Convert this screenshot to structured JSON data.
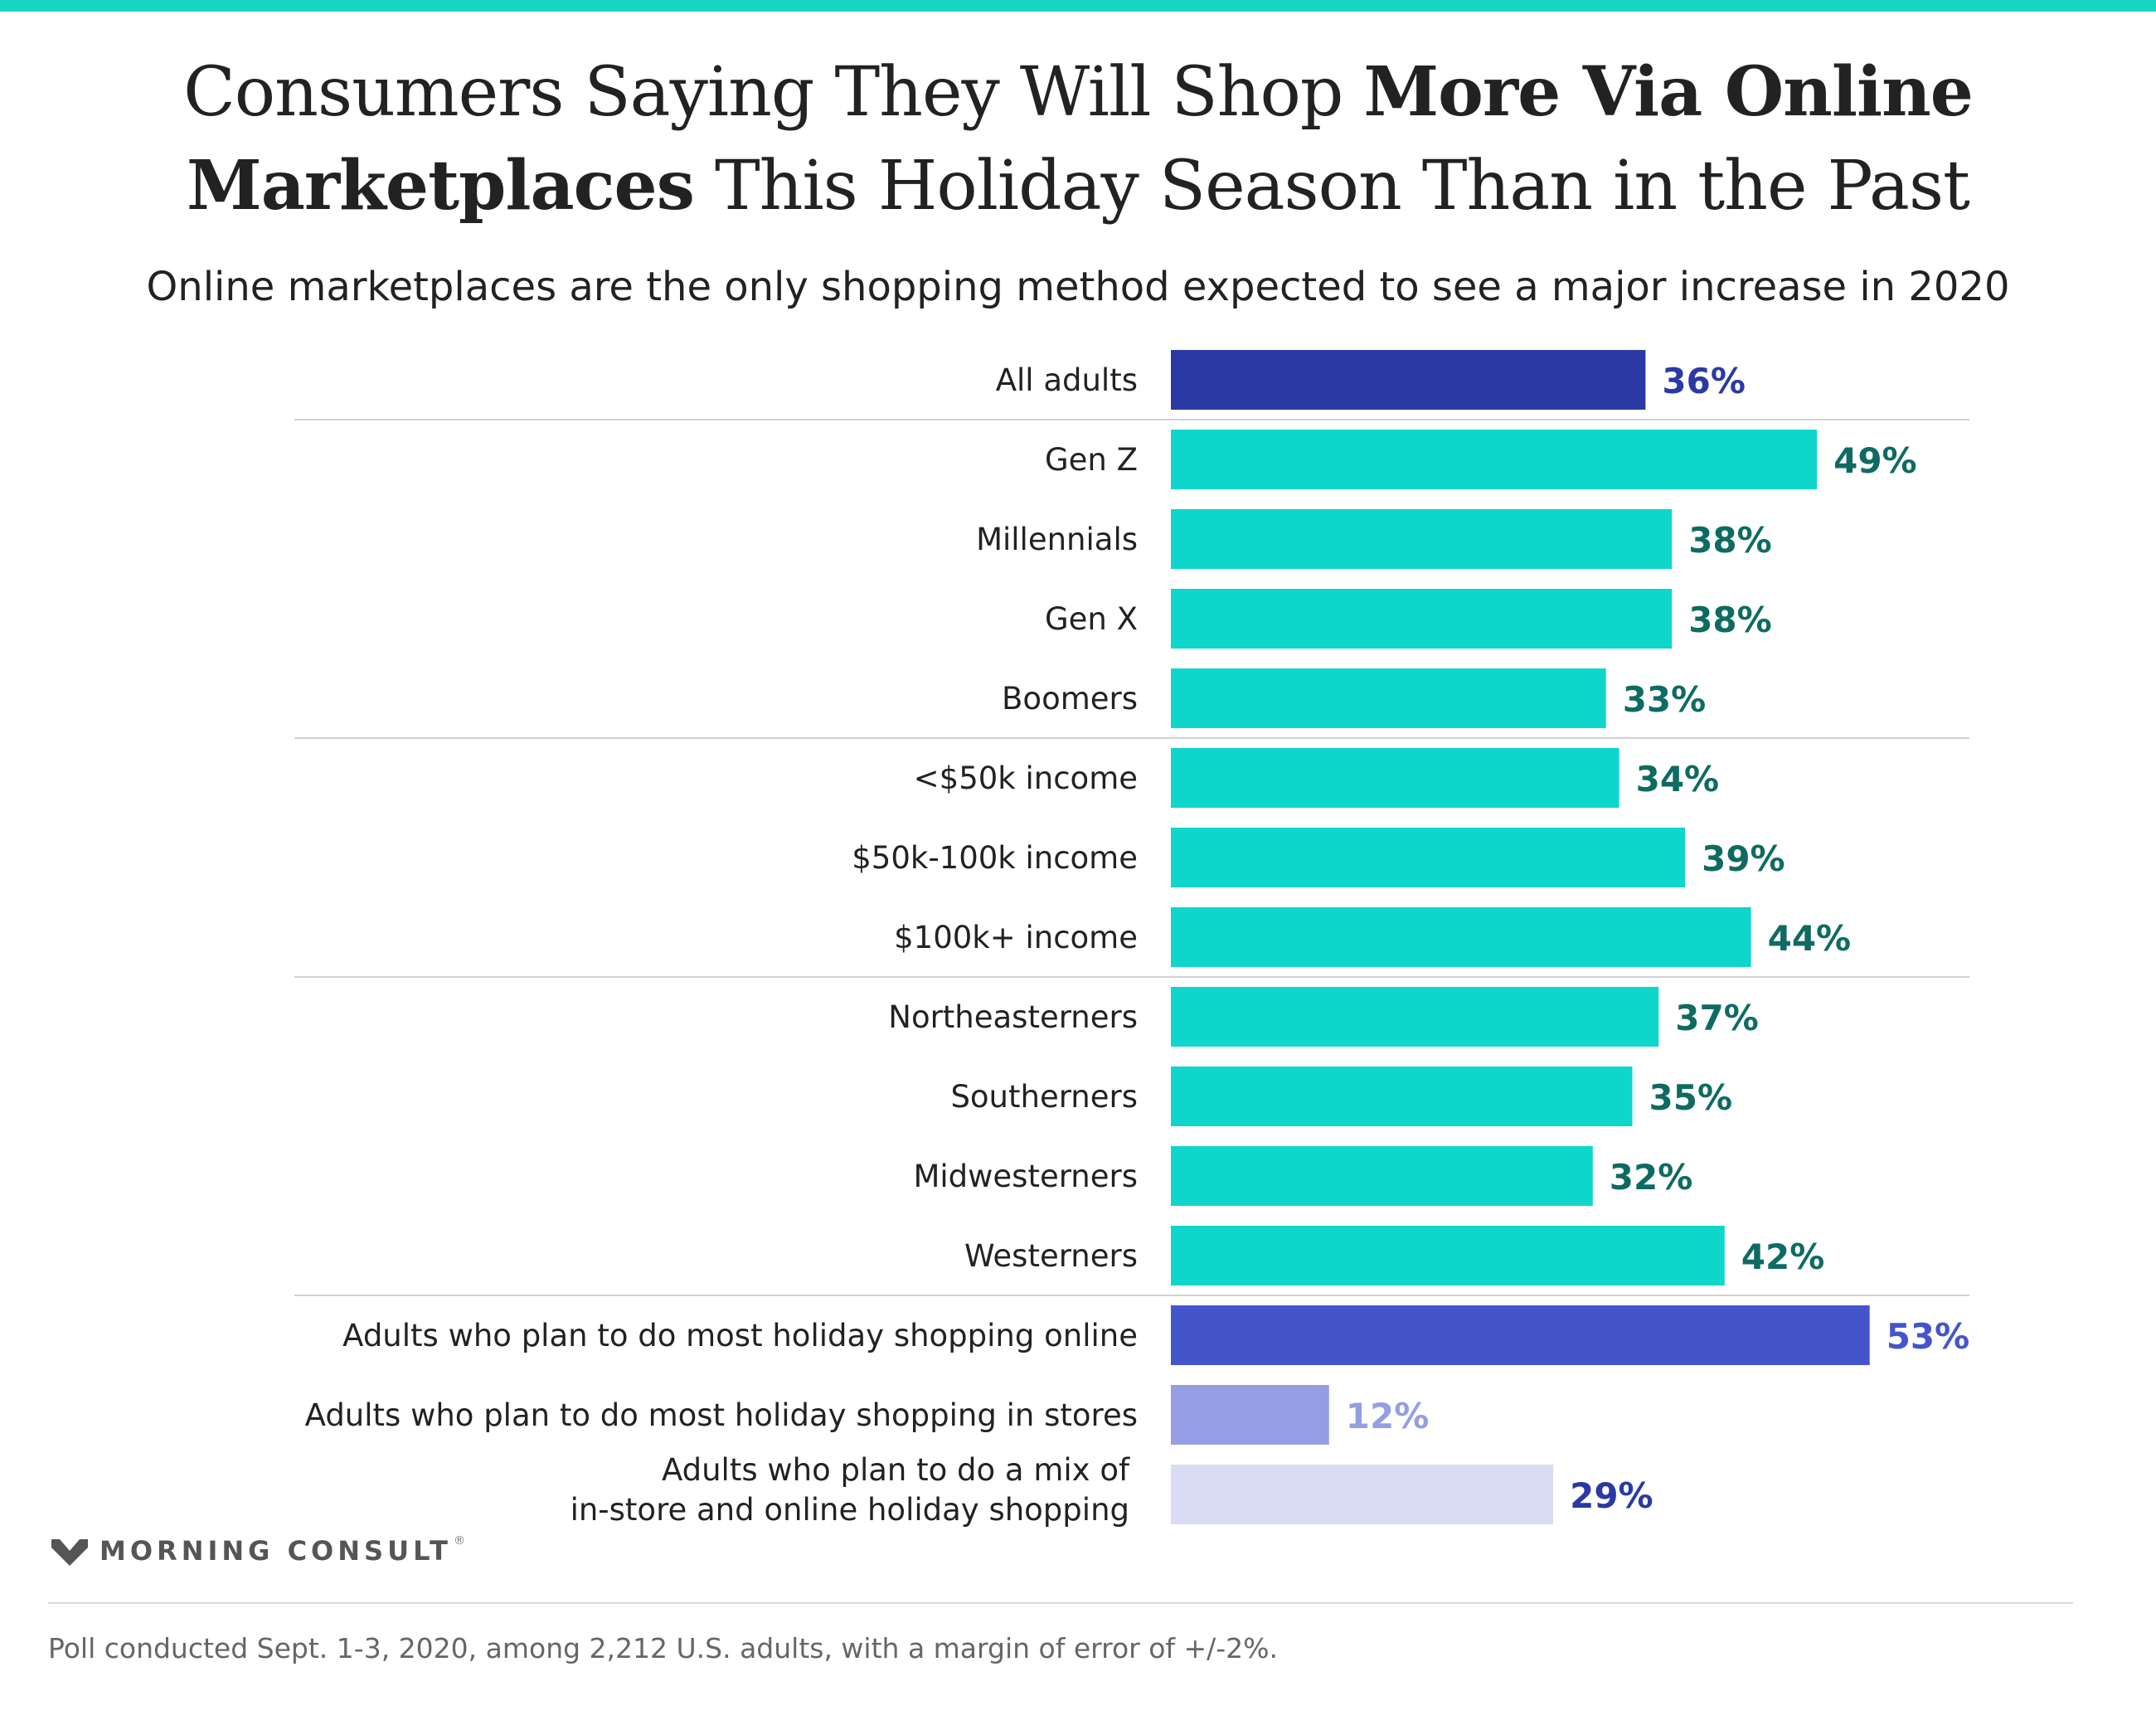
{
  "header": {
    "title_part1": "Consumers Saying They Will Shop ",
    "title_bold1": "More Via Online",
    "title_bold2": "Marketplaces",
    "title_part2": " This Holiday Season Than in the Past",
    "subtitle": "Online marketplaces are the only shopping method expected to see a major increase in 2020"
  },
  "chart_data": {
    "type": "bar",
    "orientation": "horizontal",
    "title": "Consumers Saying They Will Shop More Via Online Marketplaces This Holiday Season Than in the Past",
    "subtitle": "Online marketplaces are the only shopping method expected to see a major increase in 2020",
    "xlabel": "",
    "ylabel": "",
    "grid": false,
    "categories": [
      "All adults",
      "Gen Z",
      "Millennials",
      "Gen X",
      "Boomers",
      "<$50k income",
      "$50k-100k income",
      "$100k+ income",
      "Northeasterners",
      "Southerners",
      "Midwesterners",
      "Westerners",
      "Adults who plan to do most holiday shopping online",
      "Adults who plan to do most holiday shopping in stores",
      "Adults who plan to do a mix of in-store and online holiday shopping"
    ],
    "category_lines": [
      [
        "All adults"
      ],
      [
        "Gen Z"
      ],
      [
        "Millennials"
      ],
      [
        "Gen X"
      ],
      [
        "Boomers"
      ],
      [
        "<$50k income"
      ],
      [
        "$50k-100k income"
      ],
      [
        "$100k+ income"
      ],
      [
        "Northeasterners"
      ],
      [
        "Southerners"
      ],
      [
        "Midwesterners"
      ],
      [
        "Westerners"
      ],
      [
        "Adults who plan to do most holiday shopping online"
      ],
      [
        "Adults who plan to do most holiday shopping in stores"
      ],
      [
        "Adults who plan to do a mix of",
        "in-store and online holiday shopping"
      ]
    ],
    "values": [
      36,
      49,
      38,
      38,
      33,
      34,
      39,
      44,
      37,
      35,
      32,
      42,
      53,
      12,
      29
    ],
    "value_labels": [
      "36%",
      "49%",
      "38%",
      "38%",
      "33%",
      "34%",
      "39%",
      "44%",
      "37%",
      "35%",
      "32%",
      "42%",
      "53%",
      "12%",
      "29%"
    ],
    "bar_colors": [
      "#2B39A5",
      "#0ED6CB",
      "#0ED6CB",
      "#0ED6CB",
      "#0ED6CB",
      "#0ED6CB",
      "#0ED6CB",
      "#0ED6CB",
      "#0ED6CB",
      "#0ED6CB",
      "#0ED6CB",
      "#0ED6CB",
      "#4455CC",
      "#959EE3",
      "#DADCF6"
    ],
    "label_colors": [
      "#2B39A5",
      "#0E6B62",
      "#0E6B62",
      "#0E6B62",
      "#0E6B62",
      "#0E6B62",
      "#0E6B62",
      "#0E6B62",
      "#0E6B62",
      "#0E6B62",
      "#0E6B62",
      "#0E6B62",
      "#4455CC",
      "#959EE3",
      "#2B39A5"
    ],
    "group_breaks_after": [
      0,
      4,
      7,
      11
    ],
    "xlim": [
      0,
      60
    ]
  },
  "brand": {
    "name": "MORNING CONSULT",
    "registered": "®",
    "mark_color": "#555555"
  },
  "footer": {
    "note": "Poll conducted Sept. 1-3, 2020, among 2,212 U.S. adults, with a margin of error of +/-2%."
  },
  "colors": {
    "accent": "#19D3C5",
    "divider": "#d0d0d0"
  }
}
